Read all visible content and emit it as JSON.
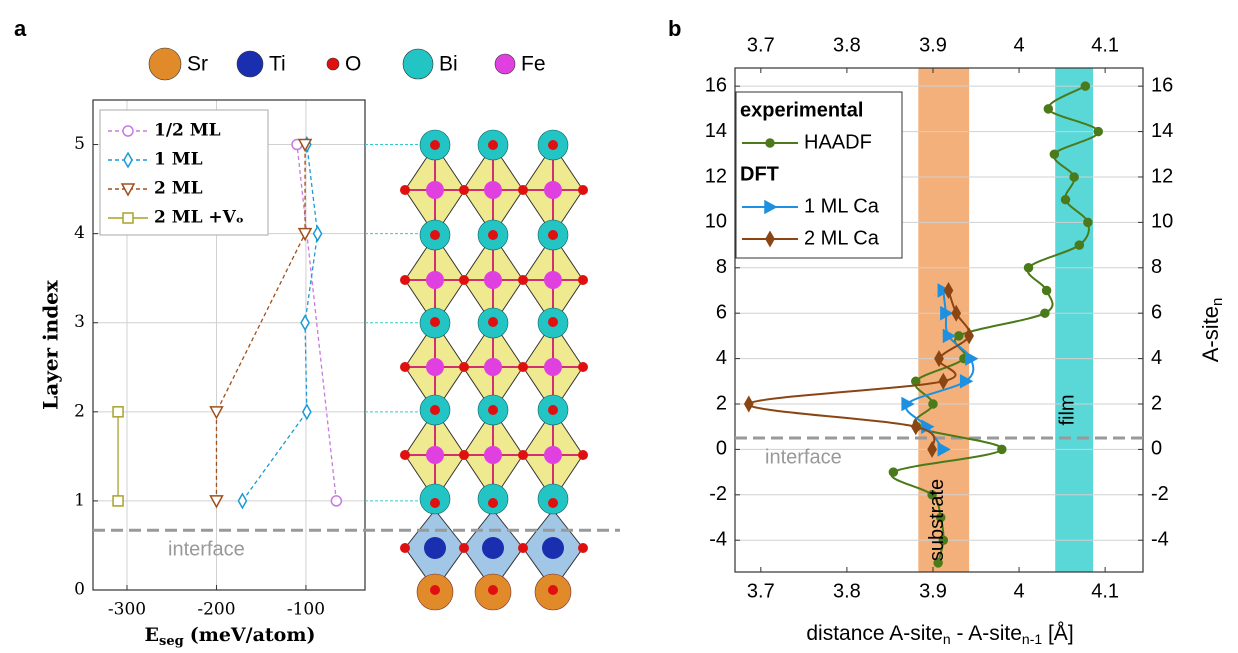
{
  "structure": {
    "atoms": [
      {
        "name": "Sr",
        "color": "#e08a2a"
      },
      {
        "name": "Ti",
        "color": "#1a2fb0"
      },
      {
        "name": "O",
        "color": "#e01010"
      },
      {
        "name": "Bi",
        "color": "#22c4c4"
      },
      {
        "name": "Fe",
        "color": "#e040e0"
      }
    ]
  },
  "chart_data": [
    {
      "type": "line",
      "label": "a",
      "ylabel": "Layer index",
      "xlabel": {
        "main": "E",
        "sub": "seg",
        "rest": "(meV/atom)"
      },
      "xlim": [
        -338,
        -34
      ],
      "xticks": [
        -300,
        -200,
        -100
      ],
      "ylim": [
        0,
        5.5
      ],
      "yticks": [
        0,
        1,
        2,
        3,
        4,
        5
      ],
      "grid": "both",
      "annotation": {
        "text": "interface",
        "y": 0.67
      },
      "series": [
        {
          "name": "1/2 ML",
          "color": "#c77be0",
          "marker": "circle",
          "dash": true,
          "x": [
            -66,
            -110
          ],
          "y": [
            1,
            5
          ]
        },
        {
          "name": "1 ML",
          "color": "#1a9ad6",
          "marker": "diamond",
          "dash": true,
          "x": [
            -171,
            -99,
            -101,
            -87,
            -99
          ],
          "y": [
            1,
            2,
            3,
            4,
            5
          ]
        },
        {
          "name": "2 ML",
          "color": "#a0501a",
          "marker": "triangle-down",
          "dash": true,
          "x": [
            -200,
            -200,
            -101,
            -101
          ],
          "y": [
            1,
            2,
            4,
            5
          ]
        },
        {
          "name": "2 ML +Vₒ",
          "color": "#a8a22a",
          "marker": "square",
          "dash": false,
          "x": [
            -310,
            -310
          ],
          "y": [
            1,
            2
          ]
        }
      ]
    },
    {
      "type": "line",
      "label": "b",
      "xlabel": {
        "a": "distance A-site",
        "b": "n",
        "c": " - A-site",
        "d": "n-1",
        "e": " [Å]"
      },
      "y2label": {
        "main": "A-site",
        "sub": "n"
      },
      "xlim": [
        3.67,
        4.144
      ],
      "xticks": [
        3.7,
        3.8,
        3.9,
        4.0,
        4.1
      ],
      "top_xticks": [
        3.7,
        3.8,
        3.9,
        4.0,
        4.1
      ],
      "ylim": [
        -5.4,
        16.8
      ],
      "yticks": [
        -4,
        -2,
        0,
        2,
        4,
        6,
        8,
        10,
        12,
        14,
        16
      ],
      "y2ticks": [
        -4,
        -2,
        0,
        2,
        4,
        6,
        8,
        10,
        12,
        14,
        16
      ],
      "grid": "y",
      "bands": [
        {
          "text": "substrate",
          "x": [
            3.883,
            3.942
          ],
          "color": "#f4b07a"
        },
        {
          "text": "film",
          "x": [
            4.042,
            4.086
          ],
          "color": "#5ad8d8"
        }
      ],
      "annotation": {
        "text": "interface",
        "y": 0.5
      },
      "legend_groups": [
        "experimental",
        "DFT"
      ],
      "series": [
        {
          "name": "HAADF",
          "group": 0,
          "color": "#4a7a1a",
          "marker": "circle",
          "x": [
            4.077,
            4.034,
            4.092,
            4.041,
            4.064,
            4.054,
            4.08,
            4.07,
            4.011,
            4.032,
            4.03,
            3.93,
            3.936,
            3.88,
            3.9,
            3.881,
            3.98,
            3.854,
            3.899,
            3.909,
            3.912,
            3.906
          ],
          "y": [
            16,
            15,
            14,
            13,
            12,
            11,
            10,
            9,
            8,
            7,
            6,
            5,
            4,
            3,
            2,
            1,
            0,
            -1,
            -2,
            -3,
            -4,
            -5
          ]
        },
        {
          "name": "1 ML Ca",
          "group": 1,
          "color": "#1e90e0",
          "marker": "triangle-right",
          "x": [
            3.912,
            3.915,
            3.918,
            3.944,
            3.938,
            3.87,
            3.893,
            3.912
          ],
          "y": [
            7,
            6,
            5,
            4,
            3,
            2,
            1,
            0
          ]
        },
        {
          "name": "2 ML Ca",
          "group": 1,
          "color": "#8b4513",
          "marker": "diamond",
          "x": [
            3.918,
            3.927,
            3.942,
            3.907,
            3.912,
            3.686,
            3.88,
            3.899
          ],
          "y": [
            7,
            6,
            5,
            4,
            3,
            2,
            1,
            0
          ]
        }
      ]
    }
  ]
}
